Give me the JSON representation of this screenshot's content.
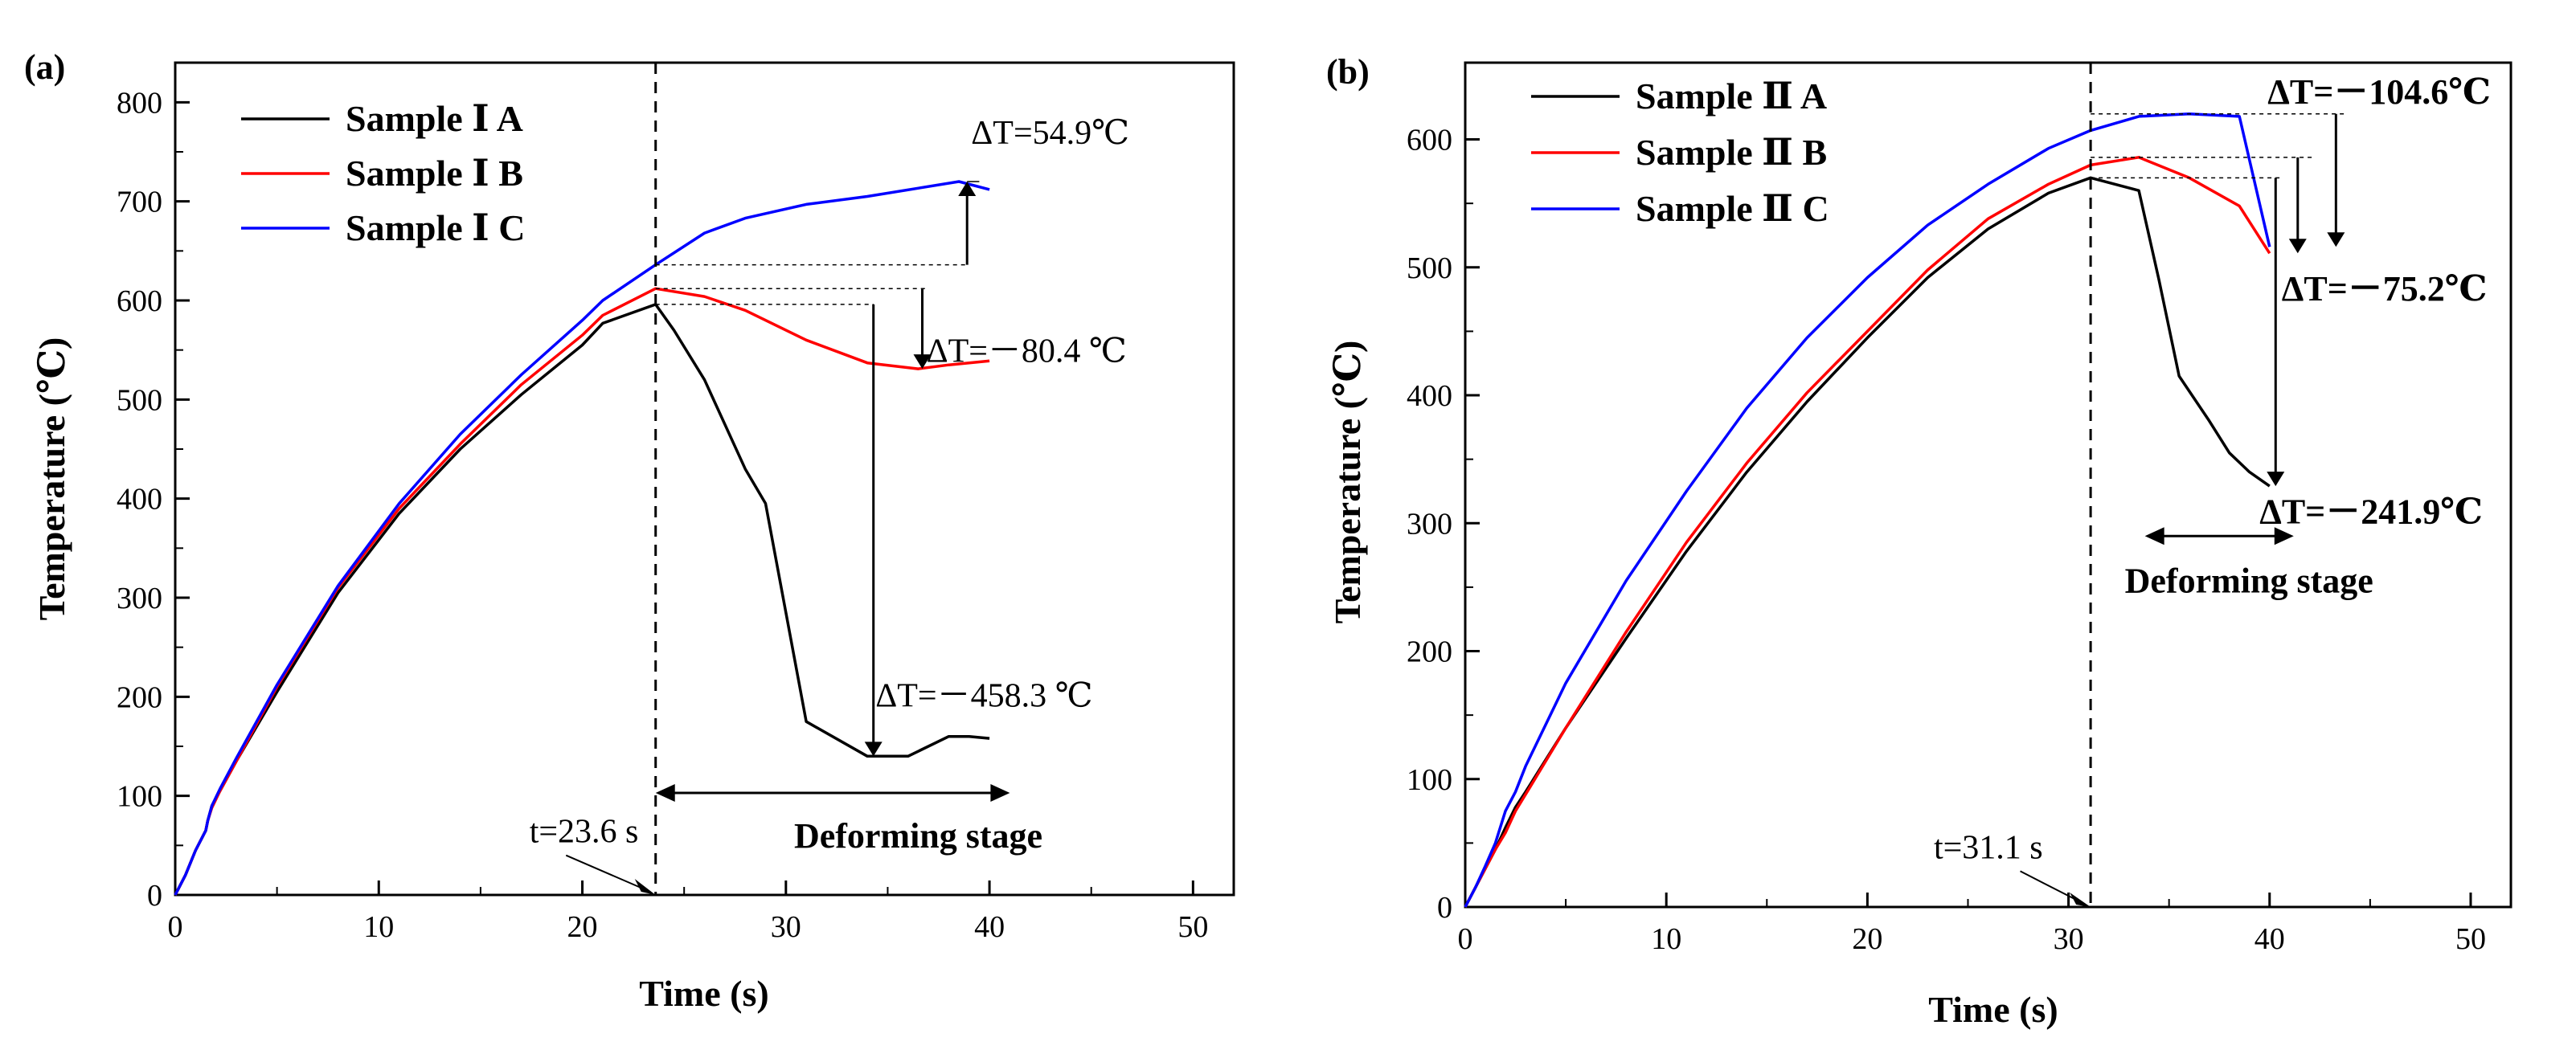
{
  "chart_data": [
    {
      "panel_label": "(a)",
      "type": "line",
      "xlabel": "Time (s)",
      "ylabel": "Temperature (℃)",
      "xlim": [
        0,
        52
      ],
      "ylim": [
        0,
        840
      ],
      "xticks": [
        0,
        10,
        20,
        30,
        40,
        50
      ],
      "yticks": [
        0,
        100,
        200,
        300,
        400,
        500,
        600,
        700,
        800
      ],
      "series": [
        {
          "name": "Sample Ⅰ A",
          "color": "#000000",
          "x": [
            0,
            0.5,
            1.0,
            1.5,
            1.6,
            1.8,
            2.2,
            3.0,
            5.0,
            8.0,
            11.0,
            14.0,
            17.0,
            20.0,
            21.0,
            23.6,
            24.5,
            26.0,
            28.0,
            29.0,
            31.0,
            34.0,
            36.0,
            38.0,
            39.0,
            40.0
          ],
          "y": [
            0,
            20,
            45,
            65,
            75,
            90,
            105,
            135,
            205,
            305,
            385,
            450,
            505,
            555,
            577,
            596,
            570,
            520,
            430,
            395,
            175,
            140,
            140,
            160,
            160,
            158
          ]
        },
        {
          "name": "Sample Ⅰ B",
          "color": "#ff0000",
          "x": [
            0,
            0.5,
            1.0,
            1.5,
            1.6,
            1.8,
            2.2,
            3.0,
            5.0,
            8.0,
            11.0,
            14.0,
            17.0,
            20.0,
            21.0,
            23.6,
            26.0,
            28.0,
            31.0,
            34.0,
            36.5,
            38.0,
            40.0
          ],
          "y": [
            0,
            20,
            45,
            65,
            75,
            88,
            105,
            135,
            210,
            310,
            390,
            455,
            515,
            565,
            585,
            612,
            604,
            590,
            560,
            537,
            531,
            535,
            539
          ]
        },
        {
          "name": "Sample Ⅰ C",
          "color": "#0000ff",
          "x": [
            0,
            0.5,
            1.0,
            1.5,
            1.6,
            1.8,
            2.2,
            3.0,
            5.0,
            8.0,
            11.0,
            14.0,
            17.0,
            20.0,
            21.0,
            23.6,
            26.0,
            28.0,
            31.0,
            34.0,
            38.5,
            40.0
          ],
          "y": [
            0,
            20,
            45,
            65,
            75,
            90,
            107,
            138,
            212,
            312,
            395,
            465,
            525,
            580,
            600,
            636,
            668,
            683,
            697,
            705,
            720,
            712
          ]
        }
      ],
      "annotations": [
        {
          "text": "ΔT=54.9℃"
        },
        {
          "text": "ΔT=－80.4 ℃"
        },
        {
          "text": "ΔT=－458.3 ℃"
        },
        {
          "text": "t=23.6 s"
        },
        {
          "text": "Deforming stage"
        }
      ],
      "vline_x": 23.6,
      "legend_position": "top-left"
    },
    {
      "panel_label": "(b)",
      "type": "line",
      "xlabel": "Time (s)",
      "ylabel": "Temperature (℃)",
      "xlim": [
        0,
        52
      ],
      "ylim": [
        0,
        660
      ],
      "xticks": [
        0,
        10,
        20,
        30,
        40,
        50
      ],
      "yticks": [
        0,
        100,
        200,
        300,
        400,
        500,
        600
      ],
      "series": [
        {
          "name": "Sample Ⅱ A",
          "color": "#000000",
          "x": [
            0,
            0.5,
            1.0,
            1.5,
            2.0,
            2.5,
            3.0,
            5.0,
            8.0,
            11.0,
            14.0,
            17.0,
            20.0,
            23.0,
            26.0,
            29.0,
            31.1,
            33.5,
            34.5,
            35.5,
            37.0,
            38.0,
            39.0,
            40.0
          ],
          "y": [
            0,
            15,
            30,
            45,
            62,
            78,
            90,
            140,
            210,
            278,
            340,
            395,
            445,
            492,
            530,
            558,
            570,
            560,
            490,
            415,
            380,
            355,
            340,
            329
          ]
        },
        {
          "name": "Sample Ⅱ B",
          "color": "#ff0000",
          "x": [
            0,
            0.5,
            1.0,
            1.5,
            2.0,
            2.5,
            3.0,
            5.0,
            8.0,
            11.0,
            14.0,
            17.0,
            20.0,
            23.0,
            26.0,
            29.0,
            31.1,
            33.5,
            36.0,
            38.5,
            40.0
          ],
          "y": [
            0,
            15,
            30,
            45,
            58,
            75,
            88,
            140,
            215,
            285,
            347,
            402,
            450,
            498,
            538,
            565,
            580,
            586,
            570,
            548,
            511
          ]
        },
        {
          "name": "Sample Ⅱ C",
          "color": "#0000ff",
          "x": [
            0,
            0.5,
            1.0,
            1.5,
            2.0,
            2.5,
            3.0,
            5.0,
            8.0,
            11.0,
            14.0,
            17.0,
            20.0,
            23.0,
            26.0,
            29.0,
            31.1,
            33.5,
            36.0,
            38.5,
            40.0
          ],
          "y": [
            0,
            15,
            32,
            50,
            75,
            90,
            110,
            175,
            255,
            325,
            390,
            445,
            492,
            533,
            565,
            593,
            607,
            618,
            620,
            618,
            516
          ]
        }
      ],
      "annotations": [
        {
          "text": "ΔT=－104.6℃"
        },
        {
          "text": "ΔT=－75.2℃"
        },
        {
          "text": "ΔT=－241.9℃"
        },
        {
          "text": "t=31.1 s"
        },
        {
          "text": "Deforming stage"
        }
      ],
      "vline_x": 31.1,
      "legend_position": "top-left"
    }
  ]
}
